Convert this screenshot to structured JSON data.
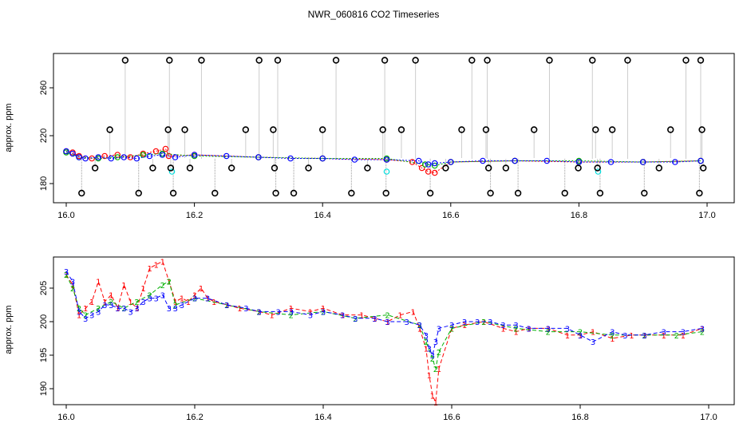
{
  "chart_data": [
    {
      "type": "scatter",
      "title": "NWR_060816  CO2 Timeseries",
      "xlabel": "",
      "ylabel": "approx. ppm",
      "xlim": [
        16.0,
        17.0
      ],
      "ylim": [
        166,
        286
      ],
      "xticks": [
        "16.0",
        "16.2",
        "16.4",
        "16.6",
        "16.8",
        "17.0"
      ],
      "xtick_values": [
        16.0,
        16.2,
        16.4,
        16.6,
        16.8,
        17.0
      ],
      "yticks": [
        "180",
        "220",
        "260"
      ],
      "ytick_values": [
        180,
        220,
        260
      ],
      "legend": "none",
      "grid": false,
      "series": [
        {
          "style": "red-open-circle",
          "color": "#ff0000",
          "x": [
            16.0,
            16.01,
            16.02,
            16.04,
            16.06,
            16.08,
            16.1,
            16.12,
            16.14,
            16.155,
            16.16,
            16.2,
            16.3,
            16.4,
            16.5,
            16.54,
            16.555,
            16.565,
            16.575,
            16.6,
            16.7,
            16.8,
            16.9,
            16.99
          ],
          "y": [
            207,
            206,
            203,
            201,
            203,
            204,
            202,
            205,
            207,
            209,
            203,
            204,
            202,
            201,
            200,
            198,
            193,
            190,
            189,
            198,
            199,
            198,
            198,
            199
          ]
        },
        {
          "style": "green-open-circle",
          "color": "#00b000",
          "x": [
            16.0,
            16.02,
            16.05,
            16.08,
            16.12,
            16.15,
            16.2,
            16.3,
            16.4,
            16.5,
            16.56,
            16.575,
            16.6,
            16.7,
            16.8,
            16.9,
            16.99
          ],
          "y": [
            206,
            202,
            201,
            202,
            204,
            205,
            203,
            202,
            201,
            201,
            196,
            195,
            198,
            199,
            199,
            198,
            199
          ]
        },
        {
          "style": "blue-open-circle",
          "color": "#0000ff",
          "x": [
            16.0,
            16.01,
            16.02,
            16.03,
            16.05,
            16.07,
            16.09,
            16.11,
            16.13,
            16.15,
            16.17,
            16.2,
            16.25,
            16.3,
            16.35,
            16.4,
            16.45,
            16.5,
            16.55,
            16.565,
            16.575,
            16.6,
            16.65,
            16.7,
            16.75,
            16.8,
            16.85,
            16.9,
            16.95,
            16.99
          ],
          "y": [
            207,
            205,
            202,
            201,
            202,
            201,
            202,
            201,
            203,
            204,
            202,
            204,
            203,
            202,
            201,
            201,
            200,
            200,
            199,
            196,
            197,
            198,
            199,
            199,
            199,
            198,
            198,
            198,
            198,
            199
          ]
        },
        {
          "style": "cyan-open-circle",
          "color": "#00dddd",
          "x": [
            16.165,
            16.5,
            16.83
          ],
          "y": [
            190,
            190,
            190
          ]
        },
        {
          "style": "black-open-circle",
          "color": "#000000",
          "x": [
            16.024,
            16.045,
            16.068,
            16.092,
            16.113,
            16.135,
            16.159,
            16.161,
            16.163,
            16.167,
            16.185,
            16.193,
            16.211,
            16.232,
            16.258,
            16.28,
            16.301,
            16.323,
            16.325,
            16.327,
            16.33,
            16.355,
            16.378,
            16.4,
            16.421,
            16.445,
            16.47,
            16.494,
            16.497,
            16.499,
            16.523,
            16.545,
            16.568,
            16.592,
            16.617,
            16.633,
            16.655,
            16.657,
            16.659,
            16.662,
            16.686,
            16.705,
            16.73,
            16.754,
            16.778,
            16.799,
            16.821,
            16.826,
            16.829,
            16.833,
            16.852,
            16.876,
            16.902,
            16.925,
            16.943,
            16.967,
            16.988,
            16.99,
            16.992,
            16.994
          ],
          "y": [
            172,
            193,
            225,
            283,
            172,
            193,
            225,
            283,
            193,
            172,
            225,
            193,
            283,
            172,
            193,
            225,
            283,
            225,
            193,
            172,
            283,
            172,
            193,
            225,
            283,
            172,
            193,
            225,
            283,
            172,
            225,
            283,
            172,
            193,
            225,
            283,
            225,
            283,
            193,
            172,
            193,
            172,
            225,
            283,
            172,
            193,
            283,
            225,
            193,
            172,
            225,
            283,
            172,
            193,
            225,
            283,
            172,
            283,
            225,
            193
          ]
        }
      ]
    },
    {
      "type": "line",
      "title": "",
      "xlabel": "",
      "ylabel": "approx. ppm",
      "xlim": [
        16.0,
        17.0
      ],
      "ylim": [
        187.5,
        210
      ],
      "xticks": [
        "16.0",
        "16.2",
        "16.4",
        "16.6",
        "16.8",
        "17.0"
      ],
      "xtick_values": [
        16.0,
        16.2,
        16.4,
        16.6,
        16.8,
        17.0
      ],
      "yticks": [
        "190",
        "195",
        "200",
        "205"
      ],
      "ytick_values": [
        190,
        195,
        200,
        205
      ],
      "legend": "none",
      "grid": false,
      "series": [
        {
          "marker": "1",
          "color": "#ff0000",
          "x": [
            16.0,
            16.01,
            16.02,
            16.03,
            16.04,
            16.05,
            16.06,
            16.07,
            16.08,
            16.09,
            16.1,
            16.11,
            16.12,
            16.13,
            16.14,
            16.15,
            16.16,
            16.17,
            16.18,
            16.19,
            16.2,
            16.21,
            16.22,
            16.23,
            16.25,
            16.27,
            16.3,
            16.32,
            16.35,
            16.38,
            16.4,
            16.43,
            16.46,
            16.48,
            16.5,
            16.52,
            16.54,
            16.55,
            16.56,
            16.565,
            16.57,
            16.575,
            16.58,
            16.6,
            16.62,
            16.65,
            16.68,
            16.7,
            16.72,
            16.75,
            16.78,
            16.8,
            16.82,
            16.85,
            16.88,
            16.9,
            16.93,
            16.96,
            16.99
          ],
          "y": [
            207,
            205.5,
            201,
            202,
            203,
            206,
            203,
            204,
            202,
            205.5,
            203,
            202,
            205,
            208,
            208.5,
            209,
            206,
            203,
            203.5,
            203,
            204,
            205,
            203.5,
            203,
            202.5,
            202,
            201.5,
            201,
            202,
            201.5,
            202,
            201,
            201,
            200.5,
            200,
            201,
            201.5,
            199,
            196,
            192,
            189,
            188,
            193,
            199,
            199.5,
            200,
            199,
            198.5,
            199,
            199,
            198,
            198,
            198.5,
            197.5,
            198,
            198,
            198,
            198,
            199
          ]
        },
        {
          "marker": "2",
          "color": "#00b000",
          "x": [
            16.0,
            16.01,
            16.02,
            16.03,
            16.05,
            16.07,
            16.09,
            16.11,
            16.13,
            16.15,
            16.16,
            16.17,
            16.2,
            16.25,
            16.3,
            16.35,
            16.4,
            16.45,
            16.5,
            16.55,
            16.56,
            16.57,
            16.575,
            16.58,
            16.6,
            16.65,
            16.7,
            16.75,
            16.8,
            16.85,
            16.9,
            16.95,
            16.99
          ],
          "y": [
            207,
            205,
            202,
            201,
            202,
            203,
            202,
            203,
            204,
            205.5,
            206,
            202.5,
            203.5,
            202.5,
            201.5,
            201,
            201.5,
            200.5,
            201,
            199.5,
            197,
            194.5,
            193,
            195.5,
            199,
            200,
            199,
            198.5,
            198.5,
            198,
            198,
            198,
            198.5
          ]
        },
        {
          "marker": "3",
          "color": "#0000ff",
          "x": [
            16.0,
            16.01,
            16.02,
            16.03,
            16.04,
            16.05,
            16.06,
            16.07,
            16.08,
            16.09,
            16.1,
            16.11,
            16.12,
            16.13,
            16.14,
            16.15,
            16.16,
            16.17,
            16.18,
            16.2,
            16.22,
            16.25,
            16.28,
            16.3,
            16.33,
            16.35,
            16.38,
            16.4,
            16.43,
            16.45,
            16.48,
            16.5,
            16.53,
            16.55,
            16.56,
            16.565,
            16.57,
            16.575,
            16.58,
            16.6,
            16.62,
            16.64,
            16.66,
            16.68,
            16.7,
            16.72,
            16.75,
            16.78,
            16.8,
            16.82,
            16.85,
            16.87,
            16.9,
            16.93,
            16.96,
            16.99
          ],
          "y": [
            207.5,
            206,
            201.5,
            200.5,
            201,
            201.5,
            202.5,
            202.5,
            202,
            202,
            201.5,
            202,
            203,
            203.5,
            203.5,
            204,
            202,
            202,
            202.5,
            203.5,
            203.5,
            202.5,
            202,
            201.5,
            201.5,
            201.5,
            201,
            201.5,
            201,
            200.5,
            200.5,
            200,
            200,
            199.5,
            198,
            196,
            195,
            197,
            199,
            199.5,
            200,
            200,
            200,
            199.5,
            199.5,
            199,
            199,
            199,
            198,
            197,
            198.5,
            198,
            198,
            198.5,
            198.5,
            199
          ]
        }
      ]
    }
  ]
}
